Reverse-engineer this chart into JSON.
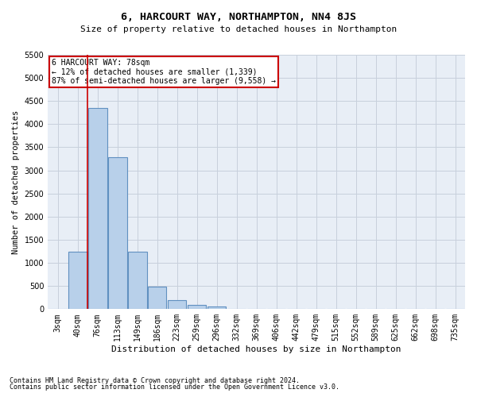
{
  "title": "6, HARCOURT WAY, NORTHAMPTON, NN4 8JS",
  "subtitle": "Size of property relative to detached houses in Northampton",
  "xlabel": "Distribution of detached houses by size in Northampton",
  "ylabel": "Number of detached properties",
  "footnote1": "Contains HM Land Registry data © Crown copyright and database right 2024.",
  "footnote2": "Contains public sector information licensed under the Open Government Licence v3.0.",
  "annotation_title": "6 HARCOURT WAY: 78sqm",
  "annotation_line1": "← 12% of detached houses are smaller (1,339)",
  "annotation_line2": "87% of semi-detached houses are larger (9,558) →",
  "bar_categories": [
    "3sqm",
    "40sqm",
    "76sqm",
    "113sqm",
    "149sqm",
    "186sqm",
    "223sqm",
    "259sqm",
    "296sqm",
    "332sqm",
    "369sqm",
    "406sqm",
    "442sqm",
    "479sqm",
    "515sqm",
    "552sqm",
    "589sqm",
    "625sqm",
    "662sqm",
    "698sqm",
    "735sqm"
  ],
  "bar_values": [
    0,
    1250,
    4350,
    3280,
    1250,
    480,
    200,
    100,
    60,
    0,
    0,
    0,
    0,
    0,
    0,
    0,
    0,
    0,
    0,
    0,
    0
  ],
  "bar_color": "#b8d0ea",
  "bar_edge_color": "#6090c0",
  "grid_color": "#c8d0dc",
  "vline_color": "#cc0000",
  "vline_x_idx": 2,
  "ylim": [
    0,
    5500
  ],
  "yticks": [
    0,
    500,
    1000,
    1500,
    2000,
    2500,
    3000,
    3500,
    4000,
    4500,
    5000,
    5500
  ],
  "annotation_box_color": "#cc0000",
  "bg_color": "#e8eef6",
  "title_fontsize": 9.5,
  "subtitle_fontsize": 8,
  "ylabel_fontsize": 7.5,
  "xlabel_fontsize": 8,
  "tick_fontsize": 7,
  "footnote_fontsize": 6
}
